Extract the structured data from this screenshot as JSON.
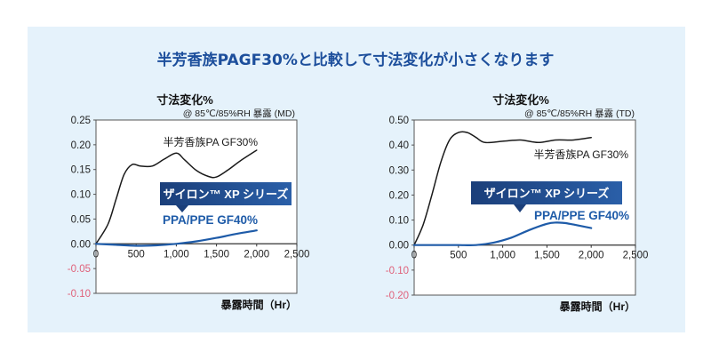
{
  "title": "半芳香族PAGF30%と比較して寸法変化が小さくなります",
  "chart_data": [
    {
      "type": "line",
      "ylabel": "寸法変化%",
      "subtitle": "@ 85℃/85%RH 暴露 (MD)",
      "xlabel": "暴露時間（Hr）",
      "xlim": [
        0,
        2500
      ],
      "ylim": [
        -0.1,
        0.25
      ],
      "xticks": [
        "0",
        "500",
        "1,000",
        "1,500",
        "2,000",
        "2,500"
      ],
      "xtick_values": [
        0,
        500,
        1000,
        1500,
        2000,
        2500
      ],
      "yticks": [
        "0.25",
        "0.20",
        "0.15",
        "0.10",
        "0.05",
        "0.00",
        "-0.05",
        "-0.10"
      ],
      "ytick_values": [
        0.25,
        0.2,
        0.15,
        0.1,
        0.05,
        0.0,
        -0.05,
        -0.1
      ],
      "series": [
        {
          "name": "半芳香族PA GF30%",
          "color": "#1a1a1a",
          "x": [
            0,
            150,
            250,
            350,
            450,
            550,
            700,
            850,
            1000,
            1100,
            1250,
            1400,
            1500,
            1650,
            1800,
            2000
          ],
          "y": [
            0.0,
            0.04,
            0.09,
            0.14,
            0.16,
            0.157,
            0.157,
            0.171,
            0.183,
            0.17,
            0.148,
            0.136,
            0.135,
            0.15,
            0.168,
            0.189
          ]
        },
        {
          "name": "PPA/PPE GF40%",
          "color": "#1e5ba8",
          "x": [
            0,
            250,
            500,
            750,
            1000,
            1250,
            1500,
            1750,
            2000
          ],
          "y": [
            0.0,
            -0.002,
            -0.004,
            -0.003,
            0.0,
            0.005,
            0.012,
            0.02,
            0.027
          ]
        }
      ],
      "legend_box": "ザイロン™ XP シリーズ"
    },
    {
      "type": "line",
      "ylabel": "寸法変化%",
      "subtitle": "@ 85℃/85%RH 暴露 (TD)",
      "xlabel": "暴露時間（Hr）",
      "xlim": [
        0,
        2500
      ],
      "ylim": [
        -0.2,
        0.5
      ],
      "xticks": [
        "0",
        "500",
        "1,000",
        "1,500",
        "2,000",
        "2,500"
      ],
      "xtick_values": [
        0,
        500,
        1000,
        1500,
        2000,
        2500
      ],
      "yticks": [
        "0.50",
        "0.40",
        "0.30",
        "0.20",
        "0.10",
        "0.00",
        "-0.10",
        "-0.20"
      ],
      "ytick_values": [
        0.5,
        0.4,
        0.3,
        0.2,
        0.1,
        0.0,
        -0.1,
        -0.2
      ],
      "series": [
        {
          "name": "半芳香族PA GF30%",
          "color": "#1a1a1a",
          "x": [
            0,
            100,
            200,
            300,
            400,
            500,
            600,
            700,
            800,
            1000,
            1200,
            1400,
            1600,
            1800,
            2000
          ],
          "y": [
            0.0,
            0.08,
            0.2,
            0.33,
            0.42,
            0.45,
            0.45,
            0.43,
            0.41,
            0.415,
            0.42,
            0.41,
            0.42,
            0.42,
            0.43
          ]
        },
        {
          "name": "PPA/PPE GF40%",
          "color": "#1e5ba8",
          "x": [
            0,
            300,
            500,
            700,
            900,
            1100,
            1300,
            1500,
            1600,
            1700,
            1800,
            2000
          ],
          "y": [
            0.0,
            0.0,
            0.0,
            0.0,
            0.01,
            0.03,
            0.06,
            0.085,
            0.09,
            0.088,
            0.082,
            0.068
          ]
        }
      ],
      "legend_box": "ザイロン™ XP シリーズ"
    }
  ]
}
